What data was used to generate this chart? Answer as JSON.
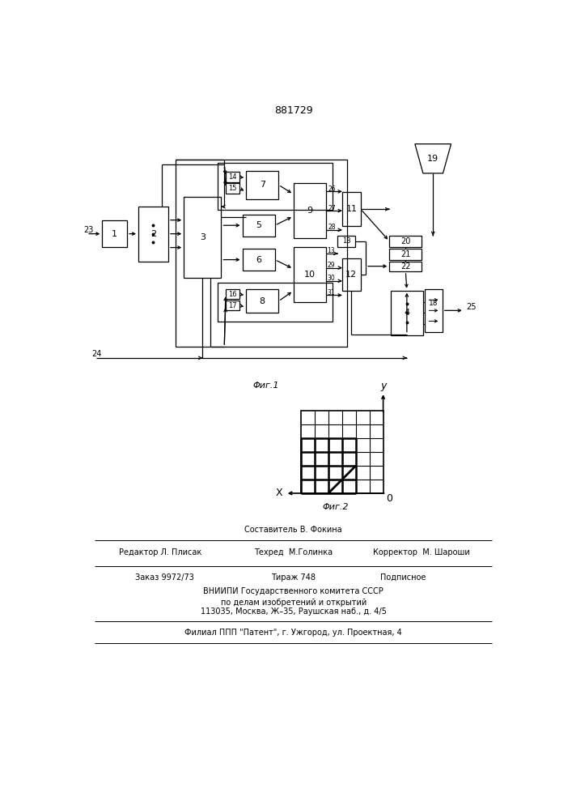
{
  "title": "881729",
  "fig1_caption": "Φиг.1",
  "fig2_caption": "Φиг.2",
  "footer_sostavitel": "Составитель В. Фокина",
  "footer_redaktor": "Редактор Л. Плисак",
  "footer_tehred": "Техред  М.Голинка",
  "footer_korrektor": "Корректор  М. Шароши",
  "footer_order": "Заказ 9972/73",
  "footer_tirazh": "Тираж 748",
  "footer_podpisnoe": "Подписное",
  "footer_vnipi": "ВНИИПИ Государственного комитета СССР",
  "footer_po_delam": "по делам изобретений и открытий",
  "footer_address": "113035, Москва, Ж–35, Раушская наб., д. 4/5",
  "footer_filial": "Филиал ППП \"Патент\", г. Ужгород, ул. Проектная, 4",
  "bg_color": "#ffffff",
  "lc": "#000000"
}
